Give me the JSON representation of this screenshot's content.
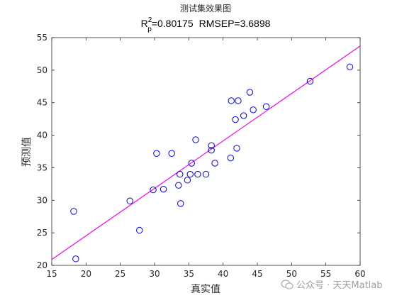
{
  "chart_data": {
    "type": "scatter",
    "title": "测试集效果图",
    "metrics": {
      "r2_prefix": "R",
      "r2_superscript": "2",
      "r2_subscript": "p",
      "r2_value_text": "=0.80175",
      "rmsep_text": "RMSEP=3.6898"
    },
    "xlabel": "真实值",
    "ylabel": "预测值",
    "xlim": [
      15,
      60
    ],
    "ylim": [
      20,
      55
    ],
    "xticks": [
      15,
      20,
      25,
      30,
      35,
      40,
      45,
      50,
      55,
      60
    ],
    "yticks": [
      20,
      25,
      30,
      35,
      40,
      45,
      50,
      55
    ],
    "grid": false,
    "series": [
      {
        "marker": "circle",
        "color": "#0000ff",
        "points": [
          [
            18.2,
            28.3
          ],
          [
            18.5,
            21.0
          ],
          [
            26.4,
            29.9
          ],
          [
            27.8,
            25.4
          ],
          [
            29.8,
            31.6
          ],
          [
            30.3,
            37.2
          ],
          [
            31.3,
            31.7
          ],
          [
            32.5,
            37.2
          ],
          [
            33.5,
            32.3
          ],
          [
            33.7,
            34.0
          ],
          [
            33.8,
            29.5
          ],
          [
            34.8,
            33.1
          ],
          [
            35.2,
            34.0
          ],
          [
            35.4,
            35.7
          ],
          [
            36.0,
            39.3
          ],
          [
            36.3,
            34.0
          ],
          [
            37.5,
            34.0
          ],
          [
            38.3,
            38.4
          ],
          [
            38.3,
            37.7
          ],
          [
            38.8,
            35.7
          ],
          [
            41.1,
            36.5
          ],
          [
            41.2,
            45.3
          ],
          [
            41.8,
            42.4
          ],
          [
            42.0,
            38.0
          ],
          [
            42.2,
            45.3
          ],
          [
            43.0,
            43.0
          ],
          [
            43.9,
            46.6
          ],
          [
            44.4,
            43.9
          ],
          [
            46.3,
            44.4
          ],
          [
            52.7,
            48.3
          ],
          [
            58.5,
            50.5
          ]
        ]
      },
      {
        "type": "line",
        "color": "#ff00ff",
        "points": [
          [
            15,
            20.9
          ],
          [
            60,
            53.7
          ]
        ]
      }
    ]
  },
  "watermark": {
    "text": "公众号 · 天天Matlab"
  }
}
